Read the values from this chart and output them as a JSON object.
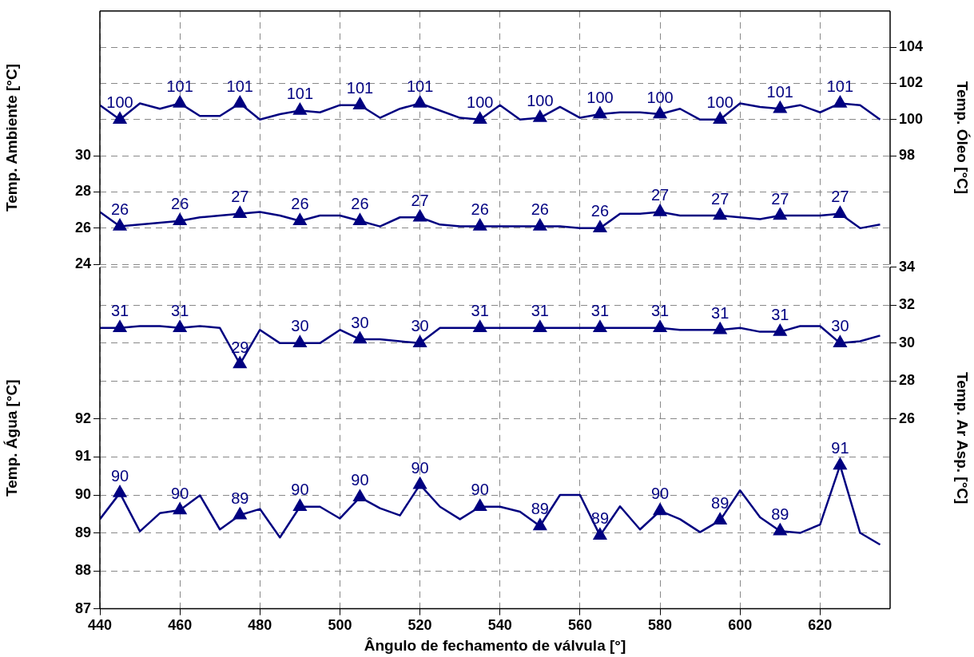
{
  "chart_data": [
    {
      "type": "line",
      "ylabel": "Temp. Ambiente [°C]",
      "y2label": "Temp. Óleo [°C]",
      "x": [
        440,
        445,
        450,
        455,
        460,
        465,
        470,
        475,
        480,
        485,
        490,
        495,
        500,
        505,
        510,
        515,
        520,
        525,
        530,
        535,
        540,
        545,
        550,
        555,
        560,
        565,
        570,
        575,
        580,
        585,
        590,
        595,
        600,
        605,
        610,
        615,
        620,
        625,
        630,
        635
      ],
      "xlim": [
        440,
        637.5
      ],
      "xticks": [
        440,
        460,
        480,
        500,
        520,
        540,
        560,
        580,
        600,
        620
      ],
      "ylim": [
        24,
        38
      ],
      "yticks": [
        24,
        26,
        28,
        30
      ],
      "y2lim": [
        92,
        106
      ],
      "y2ticks": [
        98,
        100,
        102,
        104
      ],
      "series": [
        {
          "axis": "y2",
          "color": "#000080",
          "values": [
            100.8,
            100.0,
            100.9,
            100.6,
            100.9,
            100.2,
            100.2,
            100.9,
            100.0,
            100.3,
            100.5,
            100.4,
            100.8,
            100.8,
            100.1,
            100.6,
            100.9,
            100.5,
            100.1,
            100.0,
            100.8,
            100.0,
            100.1,
            100.7,
            100.1,
            100.3,
            100.4,
            100.4,
            100.3,
            100.6,
            100.0,
            100.0,
            100.9,
            100.7,
            100.6,
            100.8,
            100.4,
            100.9,
            100.8,
            100.0
          ]
        },
        {
          "type": "scatter",
          "marker": "triangle",
          "axis": "y2",
          "color": "#000080",
          "x": [
            445,
            460,
            475,
            490,
            505,
            520,
            535,
            550,
            565,
            580,
            595,
            610,
            625
          ],
          "values": [
            100.0,
            100.9,
            100.9,
            100.5,
            100.8,
            100.9,
            100.0,
            100.1,
            100.3,
            100.3,
            100.0,
            100.6,
            100.9
          ],
          "value_labels": [
            "100",
            "101",
            "101",
            "101",
            "101",
            "101",
            "100",
            "100",
            "100",
            "100",
            "100",
            "101",
            "101"
          ]
        },
        {
          "color": "#000080",
          "values": [
            26.9,
            26.1,
            26.2,
            26.3,
            26.4,
            26.6,
            26.7,
            26.8,
            26.9,
            26.7,
            26.4,
            26.7,
            26.7,
            26.4,
            26.1,
            26.6,
            26.6,
            26.2,
            26.1,
            26.1,
            26.1,
            26.1,
            26.1,
            26.1,
            26.0,
            26.0,
            26.8,
            26.8,
            26.9,
            26.7,
            26.7,
            26.7,
            26.6,
            26.5,
            26.7,
            26.7,
            26.7,
            26.8,
            26.0,
            26.2
          ]
        },
        {
          "type": "scatter",
          "marker": "triangle",
          "color": "#000080",
          "x": [
            445,
            460,
            475,
            490,
            505,
            520,
            535,
            550,
            565,
            580,
            595,
            610,
            625
          ],
          "values": [
            26.1,
            26.4,
            26.8,
            26.4,
            26.4,
            26.6,
            26.1,
            26.1,
            26.0,
            26.9,
            26.7,
            26.7,
            26.8
          ],
          "value_labels": [
            "26",
            "26",
            "27",
            "26",
            "26",
            "27",
            "26",
            "26",
            "26",
            "27",
            "27",
            "27",
            "27"
          ]
        }
      ],
      "tick_labels": "y",
      "grid": true,
      "legend": false,
      "marker": "none",
      "line_style": "solid"
    },
    {
      "type": "line",
      "xlabel": "Ângulo de fechamento de válvula [°]",
      "ylabel": "Temp. Água [°C]",
      "y2label": "Temp. Ar Asp. [°C]",
      "x": [
        440,
        445,
        450,
        455,
        460,
        465,
        470,
        475,
        480,
        485,
        490,
        495,
        500,
        505,
        510,
        515,
        520,
        525,
        530,
        535,
        540,
        545,
        550,
        555,
        560,
        565,
        570,
        575,
        580,
        585,
        590,
        595,
        600,
        605,
        610,
        615,
        620,
        625,
        630,
        635
      ],
      "xlim": [
        440,
        637.5
      ],
      "xticks": [
        440,
        460,
        480,
        500,
        520,
        540,
        560,
        580,
        600,
        620
      ],
      "ylim": [
        87,
        96
      ],
      "yticks": [
        87,
        88,
        89,
        90,
        91,
        92
      ],
      "y2lim": [
        16,
        34
      ],
      "y2ticks": [
        26,
        28,
        30,
        32,
        34
      ],
      "series": [
        {
          "axis": "y2",
          "color": "#000080",
          "values": [
            30.8,
            30.8,
            30.9,
            30.9,
            30.8,
            30.9,
            30.8,
            28.9,
            30.7,
            30.0,
            30.0,
            30.0,
            30.7,
            30.2,
            30.2,
            30.1,
            30.0,
            30.8,
            30.8,
            30.8,
            30.8,
            30.8,
            30.8,
            30.8,
            30.8,
            30.8,
            30.8,
            30.8,
            30.8,
            30.7,
            30.7,
            30.7,
            30.8,
            30.6,
            30.6,
            30.9,
            30.9,
            30.0,
            30.1,
            30.4
          ]
        },
        {
          "type": "scatter",
          "marker": "triangle",
          "axis": "y2",
          "color": "#000080",
          "x": [
            445,
            460,
            475,
            490,
            505,
            520,
            535,
            550,
            565,
            580,
            595,
            610,
            625
          ],
          "values": [
            30.8,
            30.8,
            28.9,
            30.0,
            30.2,
            30.0,
            30.8,
            30.8,
            30.8,
            30.8,
            30.7,
            30.6,
            30.0
          ],
          "value_labels": [
            "31",
            "31",
            "29",
            "30",
            "30",
            "30",
            "31",
            "31",
            "31",
            "31",
            "31",
            "31",
            "30"
          ]
        },
        {
          "color": "#000080",
          "values": [
            89.36,
            90.05,
            89.04,
            89.52,
            89.6,
            89.99,
            89.09,
            89.47,
            89.63,
            88.88,
            89.69,
            89.69,
            89.38,
            89.94,
            89.65,
            89.46,
            90.27,
            89.69,
            89.36,
            89.69,
            89.69,
            89.56,
            89.18,
            90.0,
            90.0,
            88.93,
            89.7,
            89.09,
            89.58,
            89.36,
            89.02,
            89.33,
            90.12,
            89.41,
            89.05,
            89.0,
            89.22,
            90.78,
            89.0,
            88.69
          ]
        },
        {
          "type": "scatter",
          "marker": "triangle",
          "color": "#000080",
          "x": [
            445,
            460,
            475,
            490,
            505,
            520,
            535,
            550,
            565,
            580,
            595,
            610,
            625
          ],
          "values": [
            90.05,
            89.6,
            89.47,
            89.69,
            89.94,
            90.27,
            89.69,
            89.18,
            88.93,
            89.58,
            89.33,
            89.05,
            90.78
          ],
          "value_labels": [
            "90",
            "90",
            "89",
            "90",
            "90",
            "90",
            "90",
            "89",
            "89",
            "90",
            "89",
            "89",
            "91"
          ]
        }
      ],
      "grid": true,
      "legend": false,
      "marker": "none",
      "line_style": "solid"
    }
  ]
}
